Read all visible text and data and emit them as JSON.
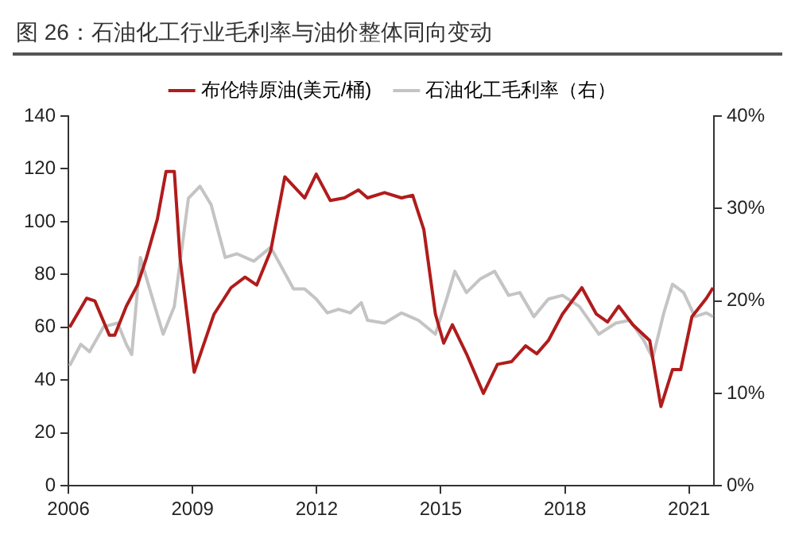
{
  "chart_data": {
    "type": "line",
    "title": "图 26：石油化工行业毛利率与油价整体同向变动",
    "legend": "top",
    "grid": false,
    "marker": "none",
    "line_style": "solid",
    "xlim": [
      2006,
      2021.6
    ],
    "xticks": [
      2006,
      2009,
      2012,
      2015,
      2018,
      2021
    ],
    "ylim": [
      0,
      140
    ],
    "yticks": [
      0,
      20,
      40,
      60,
      80,
      100,
      120,
      140
    ],
    "y2lim": [
      0,
      40
    ],
    "y2ticks": [
      {
        "value": 0,
        "label": "0%"
      },
      {
        "value": 10,
        "label": "10%"
      },
      {
        "value": 20,
        "label": "20%"
      },
      {
        "value": 30,
        "label": "30%"
      },
      {
        "value": 40,
        "label": "40%"
      }
    ],
    "series": [
      {
        "name": "布伦特原油(美元/桶)",
        "color": "#b01c1c",
        "x": [
          2006.03,
          2006.44,
          2006.64,
          2006.99,
          2007.12,
          2007.4,
          2007.67,
          2007.88,
          2008.15,
          2008.36,
          2008.56,
          2008.7,
          2009.04,
          2009.52,
          2009.93,
          2010.27,
          2010.55,
          2010.89,
          2011.23,
          2011.71,
          2011.99,
          2012.33,
          2012.67,
          2013.01,
          2013.23,
          2013.64,
          2014.05,
          2014.32,
          2014.59,
          2014.87,
          2015.07,
          2015.28,
          2015.62,
          2016.03,
          2016.37,
          2016.71,
          2017.05,
          2017.32,
          2017.6,
          2017.94,
          2018.41,
          2018.76,
          2019.03,
          2019.3,
          2019.64,
          2020.05,
          2020.32,
          2020.6,
          2020.8,
          2021.07,
          2021.42,
          2021.58
        ],
        "values": [
          60,
          71,
          70,
          57,
          57,
          68,
          76,
          86,
          101,
          119,
          119,
          86,
          43,
          65,
          75,
          79,
          76,
          89,
          117,
          109,
          118,
          108,
          109,
          112,
          109,
          111,
          109,
          110,
          97,
          65,
          54,
          61,
          50,
          35,
          46,
          47,
          53,
          50,
          55,
          65,
          75,
          65,
          62,
          68,
          61,
          55,
          30,
          44,
          44,
          64,
          71,
          75
        ]
      },
      {
        "name": "石油化工毛利率（右）",
        "color": "#c4c4c4",
        "axis": "y2",
        "x": [
          2006.03,
          2006.3,
          2006.51,
          2006.85,
          2007.19,
          2007.4,
          2007.53,
          2007.74,
          2008.01,
          2008.29,
          2008.56,
          2008.9,
          2009.18,
          2009.45,
          2009.79,
          2010.07,
          2010.48,
          2010.89,
          2011.16,
          2011.44,
          2011.71,
          2011.99,
          2012.26,
          2012.53,
          2012.81,
          2013.08,
          2013.23,
          2013.64,
          2014.05,
          2014.46,
          2014.87,
          2015.14,
          2015.34,
          2015.62,
          2015.96,
          2016.3,
          2016.64,
          2016.91,
          2017.25,
          2017.6,
          2017.94,
          2018.35,
          2018.82,
          2019.23,
          2019.57,
          2019.91,
          2020.12,
          2020.39,
          2020.6,
          2020.87,
          2021.14,
          2021.42,
          2021.58
        ],
        "values": [
          13,
          15.3,
          14.5,
          17.2,
          17.6,
          15.3,
          14.2,
          24.7,
          20.6,
          16.4,
          19.4,
          31.1,
          32.4,
          30.4,
          24.7,
          25.1,
          24.3,
          25.8,
          23.6,
          21.3,
          21.3,
          20.2,
          18.7,
          19.1,
          18.7,
          19.8,
          17.9,
          17.6,
          18.7,
          17.9,
          16.4,
          20.2,
          23.2,
          20.9,
          22.4,
          23.2,
          20.6,
          20.9,
          18.3,
          20.2,
          20.6,
          19.4,
          16.4,
          17.6,
          17.9,
          15.7,
          13.8,
          18.7,
          21.8,
          20.9,
          18.3,
          18.7,
          18.3
        ]
      }
    ]
  }
}
